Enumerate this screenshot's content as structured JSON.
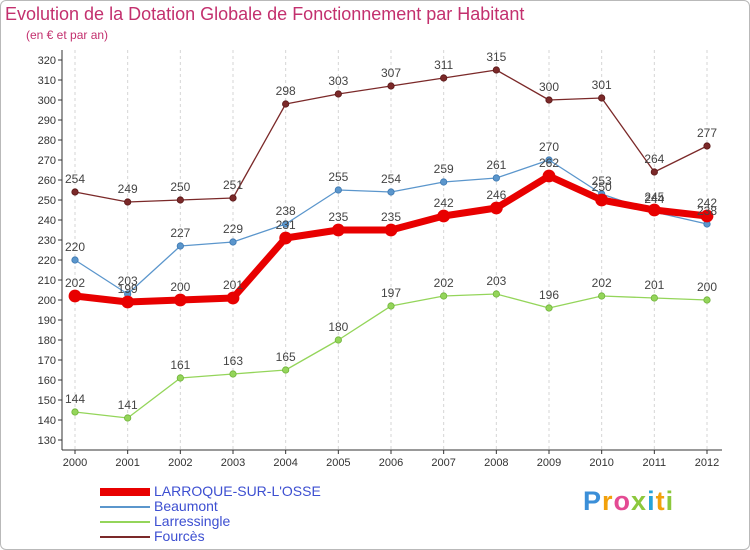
{
  "title": "Evolution de la Dotation Globale de Fonctionnement par Habitant",
  "subtitle": "(en € et par an)",
  "chart_data": {
    "type": "line",
    "title": "Evolution de la Dotation Globale de Fonctionnement par Habitant",
    "subtitle": "(en € et par an)",
    "xlabel": "",
    "ylabel": "",
    "categories": [
      "2000",
      "2001",
      "2002",
      "2003",
      "2004",
      "2005",
      "2006",
      "2007",
      "2008",
      "2009",
      "2010",
      "2011",
      "2012"
    ],
    "ylim": [
      130,
      320
    ],
    "yticks": [
      130,
      140,
      150,
      160,
      170,
      180,
      190,
      200,
      210,
      220,
      230,
      240,
      250,
      260,
      270,
      280,
      290,
      300,
      310,
      320
    ],
    "grid": "vertical dashed",
    "legend_position": "bottom-left",
    "series": [
      {
        "name": "Fourcès",
        "color": "#7b2929",
        "values": [
          254,
          249,
          250,
          251,
          298,
          303,
          307,
          311,
          315,
          300,
          301,
          264,
          277
        ],
        "labels": [
          "254",
          "249",
          "250",
          "251",
          "298",
          "303",
          "307",
          "311",
          "315",
          "300",
          "301",
          "264",
          "277"
        ]
      },
      {
        "name": "Beaumont",
        "color": "#5b96cc",
        "values": [
          220,
          203,
          227,
          229,
          238,
          255,
          254,
          259,
          261,
          270,
          253,
          244,
          238
        ],
        "labels": [
          "220",
          "203",
          "227",
          "229",
          "238",
          "255",
          "254",
          "259",
          "261",
          "270",
          "253",
          "244",
          "238"
        ]
      },
      {
        "name": "Larressingle",
        "color": "#94d55a",
        "values": [
          144,
          141,
          161,
          163,
          165,
          180,
          197,
          202,
          203,
          196,
          202,
          201,
          200
        ],
        "labels": [
          "144",
          "141",
          "161",
          "163",
          "165",
          "180",
          "197",
          "202",
          "203",
          "196",
          "202",
          "201",
          "200"
        ]
      },
      {
        "name": "LARROQUE-SUR-L'OSSE",
        "color": "#e80000",
        "values": [
          202,
          199,
          200,
          201,
          231,
          235,
          235,
          242,
          246,
          262,
          250,
          245,
          242
        ],
        "labels": [
          "202",
          "199",
          "200",
          "201",
          "231",
          "235",
          "235",
          "242",
          "246",
          "262",
          "250",
          "245",
          "242"
        ]
      }
    ]
  },
  "legend": [
    {
      "label": "LARROQUE-SUR-L'OSSE",
      "color": "#e80000"
    },
    {
      "label": "Beaumont",
      "color": "#5b96cc"
    },
    {
      "label": "Larressingle",
      "color": "#94d55a"
    },
    {
      "label": "Fourcès",
      "color": "#7b2929"
    }
  ],
  "logo": {
    "p": "P",
    "r": "r",
    "o": "o",
    "x": "x",
    "i": "i",
    "t": "t",
    "i2": "i"
  }
}
